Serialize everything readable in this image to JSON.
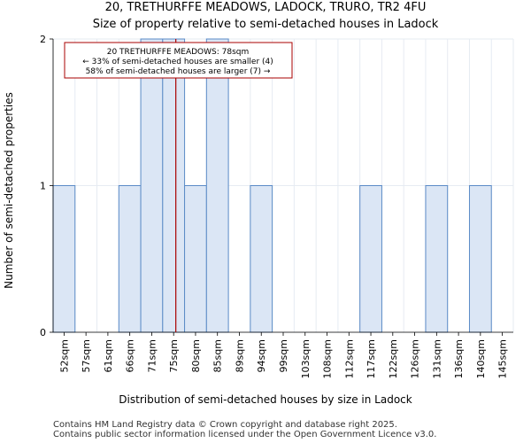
{
  "title": "20, TRETHURFFE MEADOWS, LADOCK, TRURO, TR2 4FU",
  "subtitle": "Size of property relative to semi-detached houses in Ladock",
  "footer": [
    "Contains HM Land Registry data © Crown copyright and database right 2025.",
    "Contains public sector information licensed under the Open Government Licence v3.0."
  ],
  "colors": {
    "bar_fill": "#dbe6f5",
    "bar_stroke": "#5b8bc7",
    "marker_line": "#aa0000",
    "grid": "#e6ebf2",
    "annotation_border": "#aa0000"
  },
  "chart_data": {
    "type": "bar",
    "title": "20, TRETHURFFE MEADOWS, LADOCK, TRURO, TR2 4FU",
    "subtitle": "Size of property relative to semi-detached houses in Ladock",
    "xlabel": "Distribution of semi-detached houses by size in Ladock",
    "ylabel": "Number of semi-detached properties",
    "categories": [
      "52sqm",
      "57sqm",
      "61sqm",
      "66sqm",
      "71sqm",
      "75sqm",
      "80sqm",
      "85sqm",
      "89sqm",
      "94sqm",
      "99sqm",
      "103sqm",
      "108sqm",
      "112sqm",
      "117sqm",
      "122sqm",
      "126sqm",
      "131sqm",
      "136sqm",
      "140sqm",
      "145sqm"
    ],
    "values": [
      1,
      0,
      0,
      1,
      2,
      2,
      1,
      2,
      0,
      1,
      0,
      0,
      0,
      0,
      1,
      0,
      0,
      1,
      0,
      1,
      0
    ],
    "ylim": [
      0,
      2
    ],
    "yticks": [
      0,
      1,
      2
    ],
    "grid": true,
    "property_marker": {
      "value_sqm": 78,
      "bin_position": 5.6
    },
    "annotation": {
      "line1": "20 TRETHURFFE MEADOWS: 78sqm",
      "line2": "← 33% of semi-detached houses are smaller (4)",
      "line3": "58% of semi-detached houses are larger (7) →"
    }
  }
}
